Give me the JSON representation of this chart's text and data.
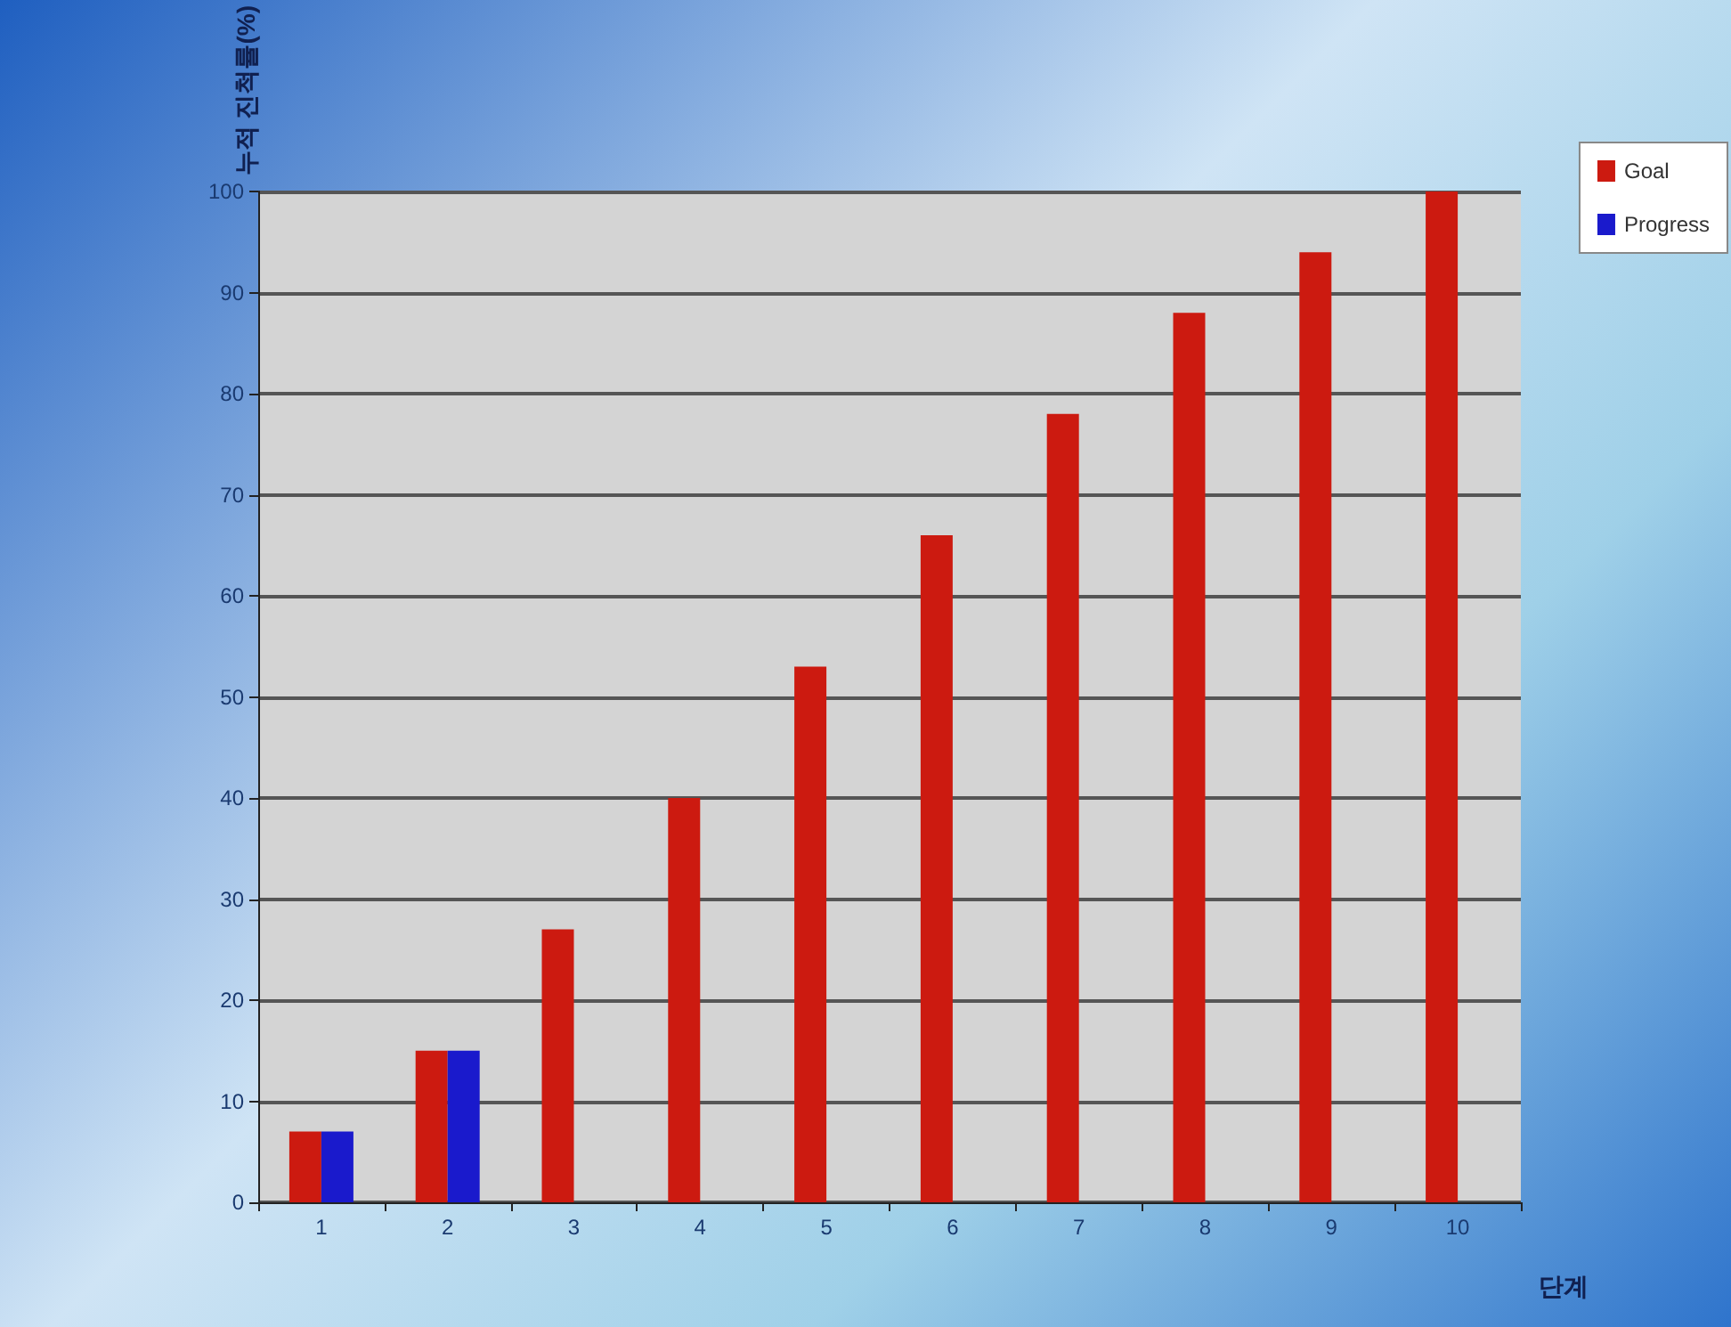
{
  "chart_data": {
    "type": "bar",
    "xlabel": "단계",
    "ylabel": "누적 진척률(%)",
    "categories": [
      "1",
      "2",
      "3",
      "4",
      "5",
      "6",
      "7",
      "8",
      "9",
      "10"
    ],
    "series": [
      {
        "name": "Goal",
        "color": "#cc1a10",
        "values": [
          7,
          15,
          27,
          40,
          53,
          66,
          78,
          88,
          94,
          100
        ]
      },
      {
        "name": "Progress",
        "color": "#1a1acc",
        "values": [
          7,
          15,
          null,
          null,
          null,
          null,
          null,
          null,
          null,
          null
        ]
      }
    ],
    "ylim": [
      0,
      100
    ],
    "yticks": [
      0,
      10,
      20,
      30,
      40,
      50,
      60,
      70,
      80,
      90,
      100
    ],
    "grid": "y",
    "legend": "top right"
  }
}
